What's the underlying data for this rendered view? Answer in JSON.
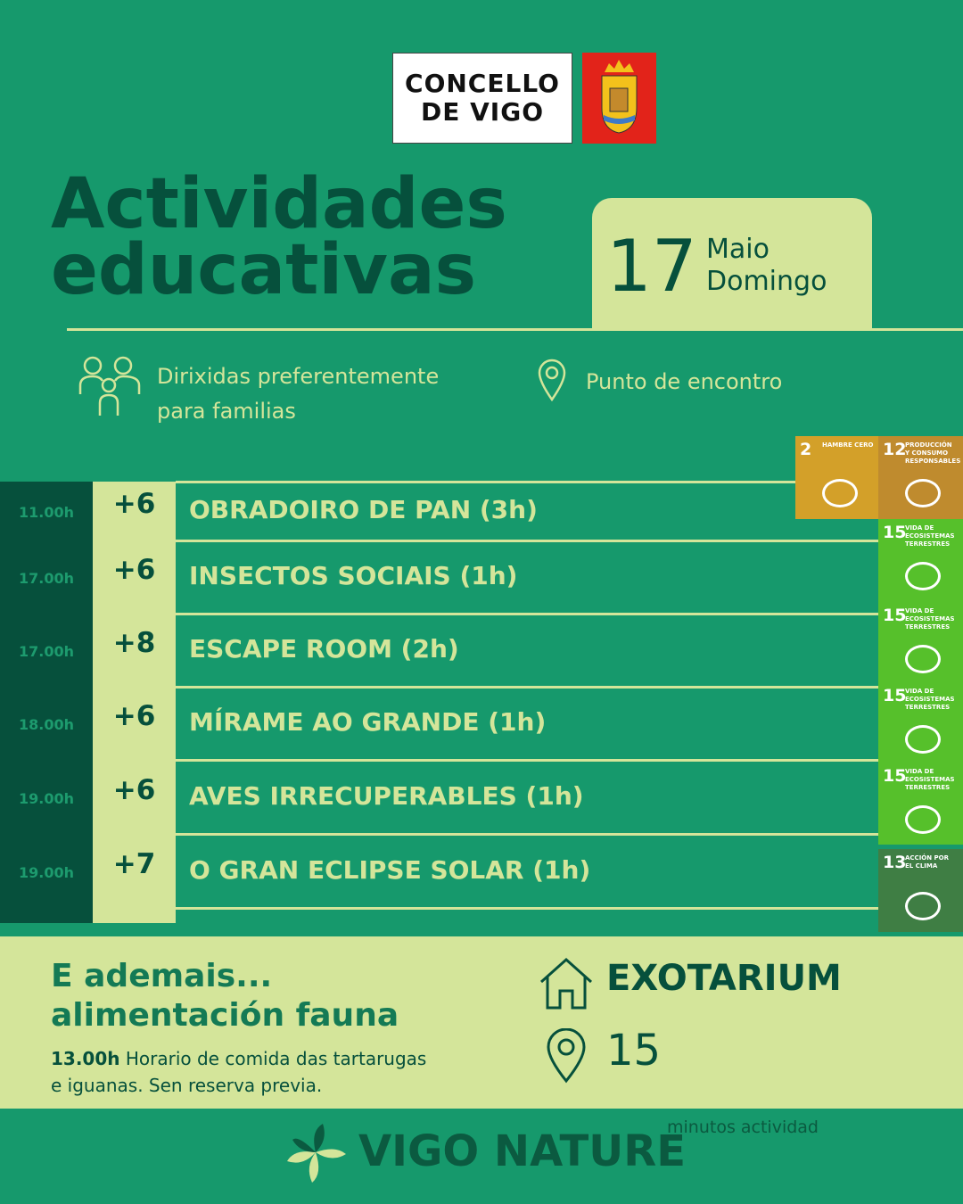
{
  "logo": {
    "lines": [
      "CONCELLO",
      "DE VIGO"
    ]
  },
  "title": {
    "lines": [
      "Actividades",
      "educativas"
    ]
  },
  "date": {
    "day": 17,
    "month": "Maio",
    "weekday": "Domingo"
  },
  "info": {
    "audience": "Dirixidas preferentemente para familias",
    "meeting": "Punto de encontro"
  },
  "schedule": {
    "rows": [
      {
        "time": "11.00h",
        "age": "+6",
        "title": "OBRADOIRO DE PAN (3h)"
      },
      {
        "time": "17.00h",
        "age": "+6",
        "title": "INSECTOS SOCIAIS (1h)"
      },
      {
        "time": "17.00h",
        "age": "+8",
        "title": "ESCAPE ROOM (2h)"
      },
      {
        "time": "18.00h",
        "age": "+6",
        "title": "MÍRAME AO GRANDE (1h)"
      },
      {
        "time": "19.00h",
        "age": "+6",
        "title": "AVES IRRECUPERABLES (1h)"
      },
      {
        "time": "19.00h",
        "age": "+7",
        "title": "O GRAN ECLIPSE SOLAR (1h)"
      }
    ]
  },
  "sdg": [
    {
      "number": 2,
      "label": "HAMBRE CERO"
    },
    {
      "number": 12,
      "label": "PRODUCCIÓN Y CONSUMO RESPONSABLES"
    },
    {
      "number": 15,
      "label": "VIDA DE ECOSISTEMAS TERRESTRES"
    },
    {
      "number": 15,
      "label": "VIDA DE ECOSISTEMAS TERRESTRES"
    },
    {
      "number": 15,
      "label": "VIDA DE ECOSISTEMAS TERRESTRES"
    },
    {
      "number": 15,
      "label": "VIDA DE ECOSISTEMAS TERRESTRES"
    },
    {
      "number": 13,
      "label": "ACCIÓN POR EL CLIMA"
    }
  ],
  "extra": {
    "heading": [
      "E ademais...",
      "alimentación fauna"
    ],
    "time": "13.00h",
    "text": "Horario de comida das tartarugas e iguanas. Sen reserva previa.",
    "place": "EXOTARIUM",
    "meeting_point": 15,
    "note": "minutos actividad"
  },
  "footer": {
    "brand": "VIGO NATURE"
  }
}
